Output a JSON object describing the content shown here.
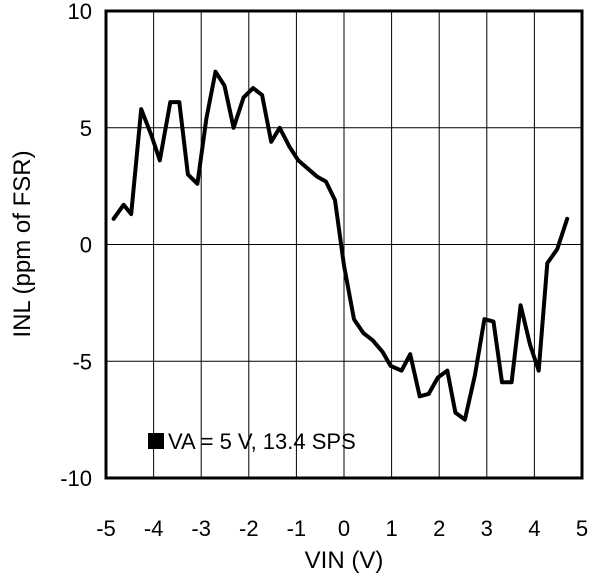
{
  "chart_data": {
    "type": "line",
    "title": "",
    "xlabel": "VIN (V)",
    "ylabel": "INL (ppm of FSR)",
    "xlim": [
      -5,
      5
    ],
    "ylim": [
      -10,
      10
    ],
    "xticks": [
      "-5",
      "-4",
      "-3",
      "-2",
      "-1",
      "0",
      "1",
      "2",
      "3",
      "4",
      "5"
    ],
    "yticks": [
      "10",
      "5",
      "0",
      "-5",
      "-10"
    ],
    "grid": true,
    "legend_position": "bottom-left",
    "series": [
      {
        "name": "VA = 5 V, 13.4 SPS",
        "color": "#000000",
        "points": [
          [
            -4.84,
            1.1
          ],
          [
            -4.63,
            1.7
          ],
          [
            -4.47,
            1.3
          ],
          [
            -4.26,
            5.8
          ],
          [
            -4.05,
            4.7
          ],
          [
            -3.87,
            3.6
          ],
          [
            -3.65,
            6.1
          ],
          [
            -3.46,
            6.1
          ],
          [
            -3.28,
            3.0
          ],
          [
            -3.08,
            2.6
          ],
          [
            -2.89,
            5.4
          ],
          [
            -2.7,
            7.4
          ],
          [
            -2.51,
            6.8
          ],
          [
            -2.32,
            5.0
          ],
          [
            -2.11,
            6.3
          ],
          [
            -1.91,
            6.7
          ],
          [
            -1.72,
            6.4
          ],
          [
            -1.53,
            4.4
          ],
          [
            -1.35,
            5.0
          ],
          [
            -1.15,
            4.2
          ],
          [
            -0.96,
            3.6
          ],
          [
            -0.56,
            2.9
          ],
          [
            -0.38,
            2.7
          ],
          [
            -0.19,
            1.9
          ],
          [
            0.0,
            -0.9
          ],
          [
            0.21,
            -3.2
          ],
          [
            0.41,
            -3.8
          ],
          [
            0.6,
            -4.1
          ],
          [
            0.81,
            -4.6
          ],
          [
            0.98,
            -5.2
          ],
          [
            1.21,
            -5.4
          ],
          [
            1.39,
            -4.7
          ],
          [
            1.59,
            -6.5
          ],
          [
            1.78,
            -6.4
          ],
          [
            1.97,
            -5.7
          ],
          [
            2.17,
            -5.4
          ],
          [
            2.34,
            -7.2
          ],
          [
            2.54,
            -7.5
          ],
          [
            2.75,
            -5.6
          ],
          [
            2.95,
            -3.2
          ],
          [
            3.14,
            -3.3
          ],
          [
            3.32,
            -5.9
          ],
          [
            3.52,
            -5.9
          ],
          [
            3.71,
            -2.6
          ],
          [
            3.91,
            -4.3
          ],
          [
            4.09,
            -5.4
          ],
          [
            4.27,
            -0.8
          ],
          [
            4.48,
            -0.2
          ],
          [
            4.69,
            1.1
          ]
        ]
      }
    ],
    "legend_marker": "square",
    "line_color": "#000000"
  }
}
